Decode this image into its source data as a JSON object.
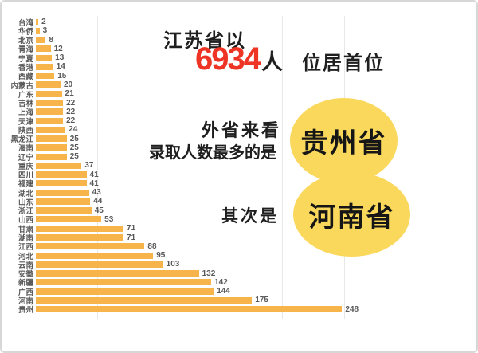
{
  "page": {
    "border_color": "#d7d7d7",
    "background": "#ffffff"
  },
  "chart_data": {
    "type": "bar",
    "orientation": "horizontal",
    "title": "",
    "xlabel": "",
    "ylabel": "",
    "categories": [
      "台湾",
      "华侨",
      "北京",
      "青海",
      "宁夏",
      "香港",
      "西藏",
      "内蒙古",
      "广东",
      "吉林",
      "上海",
      "天津",
      "陕西",
      "黑龙江",
      "海南",
      "辽宁",
      "重庆",
      "四川",
      "福建",
      "湖北",
      "山东",
      "浙江",
      "山西",
      "甘肃",
      "湖南",
      "江西",
      "河北",
      "云南",
      "安徽",
      "新疆",
      "广西",
      "河南",
      "贵州"
    ],
    "values": [
      2,
      3,
      8,
      12,
      13,
      14,
      15,
      20,
      21,
      22,
      22,
      22,
      24,
      25,
      25,
      25,
      37,
      41,
      41,
      43,
      44,
      45,
      53,
      71,
      71,
      88,
      95,
      103,
      132,
      142,
      144,
      175,
      248
    ],
    "xlim": [
      0,
      360
    ],
    "gridline_values": [
      50,
      100,
      150,
      200,
      250,
      300,
      350
    ],
    "grid": "on",
    "legend": "none",
    "bar_color": "#f6b44a",
    "label_color": "#595959",
    "grid_color": "#e8e8e6"
  },
  "annotations": {
    "headline_prefix": "江苏省以",
    "headline_number": "6934",
    "headline_unit": "人",
    "headline_suffix": "位居首位",
    "note_line1": "外省来看",
    "note_line2": "录取人数最多的是",
    "badge_top": "贵州省",
    "next_label": "其次是",
    "badge_bottom": "河南省",
    "accent_red": "#ee3424",
    "badge_yellow": "#f9d85c"
  }
}
